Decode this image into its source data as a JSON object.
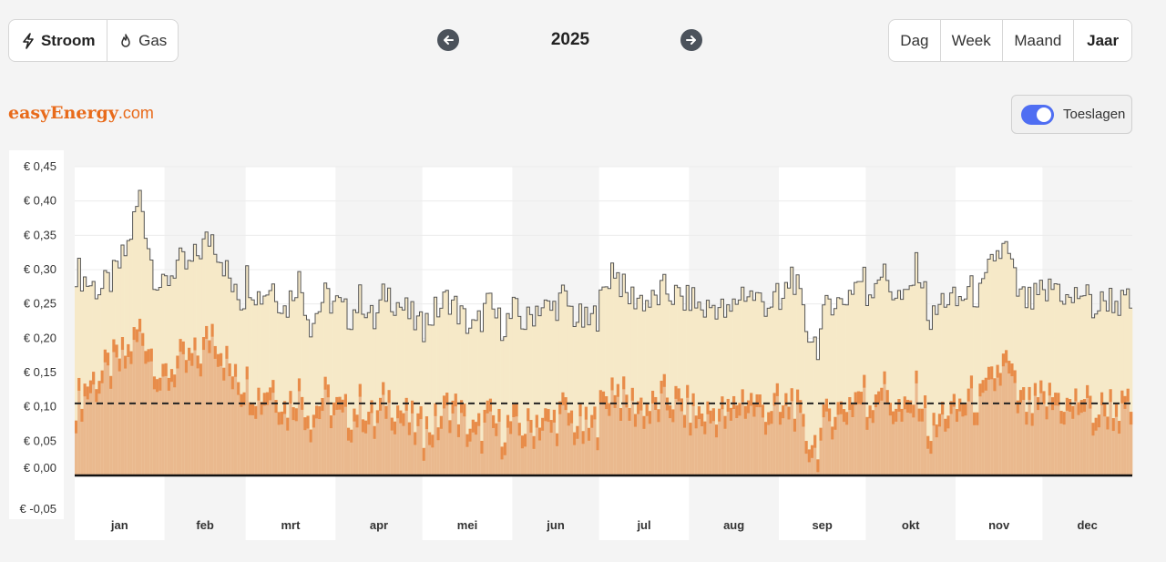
{
  "energy_toggle": {
    "items": [
      {
        "label": "Stroom",
        "icon": "bolt-icon",
        "active": true
      },
      {
        "label": "Gas",
        "icon": "flame-icon",
        "active": false
      }
    ]
  },
  "period_nav": {
    "title": "2025",
    "prev_icon": "arrow-left-icon",
    "next_icon": "arrow-right-icon"
  },
  "period_toggle": {
    "items": [
      {
        "label": "Dag",
        "active": false
      },
      {
        "label": "Week",
        "active": false
      },
      {
        "label": "Maand",
        "active": false
      },
      {
        "label": "Jaar",
        "active": true
      }
    ]
  },
  "brand": {
    "name": "easyEnergy",
    "suffix": ".com"
  },
  "surcharges_toggle": {
    "label": "Toeslagen",
    "on": true
  },
  "colors": {
    "accent": "#4f6ef2",
    "brand": "#e86a1a",
    "total_fill": "#f6e9c8",
    "price_fill": "#eab98e",
    "price_peak": "#e8843d",
    "reference_line": "#222222"
  },
  "chart_data": {
    "type": "area",
    "ylim": [
      -0.05,
      0.45
    ],
    "yticks": [
      "€ 0,45",
      "€ 0,40",
      "€ 0,35",
      "€ 0,30",
      "€ 0,25",
      "€ 0,20",
      "€ 0,15",
      "€ 0,10",
      "€ 0,05",
      "€ 0,00",
      "€ -0,05"
    ],
    "ytick_values": [
      0.45,
      0.4,
      0.35,
      0.3,
      0.25,
      0.2,
      0.15,
      0.1,
      0.05,
      0.0,
      -0.05
    ],
    "months": [
      "jan",
      "feb",
      "mrt",
      "apr",
      "mei",
      "jun",
      "jul",
      "aug",
      "sep",
      "okt",
      "nov",
      "dec"
    ],
    "month_days": [
      31,
      28,
      31,
      30,
      31,
      30,
      31,
      31,
      30,
      31,
      30,
      31
    ],
    "reference_value": 0.105,
    "series": [
      {
        "key": "total_with_surcharges",
        "monthly_profile": [
          [
            0.3,
            0.28,
            0.27,
            0.29,
            0.33,
            0.41,
            0.3,
            0.26
          ],
          [
            0.28,
            0.31,
            0.3,
            0.33,
            0.35,
            0.31,
            0.26,
            0.25
          ],
          [
            0.29,
            0.26,
            0.28,
            0.24,
            0.29,
            0.22,
            0.26,
            0.25
          ],
          [
            0.25,
            0.23,
            0.26,
            0.22,
            0.27,
            0.25,
            0.23,
            0.21
          ],
          [
            0.22,
            0.24,
            0.26,
            0.23,
            0.21,
            0.25,
            0.22,
            0.23
          ],
          [
            0.24,
            0.22,
            0.25,
            0.24,
            0.26,
            0.23,
            0.22,
            0.24
          ],
          [
            0.25,
            0.31,
            0.26,
            0.26,
            0.25,
            0.27,
            0.26,
            0.25
          ],
          [
            0.26,
            0.24,
            0.25,
            0.23,
            0.27,
            0.26,
            0.25,
            0.26
          ],
          [
            0.24,
            0.3,
            0.22,
            0.19,
            0.26,
            0.25,
            0.28,
            0.29
          ],
          [
            0.26,
            0.3,
            0.27,
            0.25,
            0.31,
            0.22,
            0.26,
            0.25
          ],
          [
            0.25,
            0.27,
            0.26,
            0.32,
            0.33,
            0.26,
            0.25,
            0.27
          ],
          [
            0.26,
            0.28,
            0.25,
            0.27,
            0.24,
            0.26,
            0.25,
            0.25
          ]
        ]
      },
      {
        "key": "spot_price",
        "monthly_profile": [
          [
            0.11,
            0.14,
            0.15,
            0.17,
            0.18,
            0.22,
            0.18,
            0.12
          ],
          [
            0.15,
            0.17,
            0.17,
            0.18,
            0.22,
            0.18,
            0.14,
            0.13
          ],
          [
            0.14,
            0.12,
            0.14,
            0.1,
            0.13,
            0.09,
            0.12,
            0.1
          ],
          [
            0.1,
            0.09,
            0.11,
            0.08,
            0.12,
            0.1,
            0.08,
            0.07
          ],
          [
            0.07,
            0.08,
            0.11,
            0.09,
            0.06,
            0.09,
            0.07,
            0.08
          ],
          [
            0.08,
            0.07,
            0.09,
            0.08,
            0.1,
            0.08,
            0.07,
            0.09
          ],
          [
            0.1,
            0.14,
            0.11,
            0.11,
            0.1,
            0.12,
            0.11,
            0.1
          ],
          [
            0.1,
            0.09,
            0.1,
            0.09,
            0.12,
            0.11,
            0.1,
            0.11
          ],
          [
            0.09,
            0.12,
            0.06,
            0.05,
            0.1,
            0.1,
            0.12,
            0.13
          ],
          [
            0.1,
            0.14,
            0.11,
            0.09,
            0.13,
            0.06,
            0.1,
            0.09
          ],
          [
            0.1,
            0.12,
            0.11,
            0.15,
            0.17,
            0.11,
            0.1,
            0.12
          ],
          [
            0.11,
            0.12,
            0.1,
            0.12,
            0.09,
            0.11,
            0.1,
            0.1
          ]
        ]
      }
    ],
    "grid": true
  }
}
